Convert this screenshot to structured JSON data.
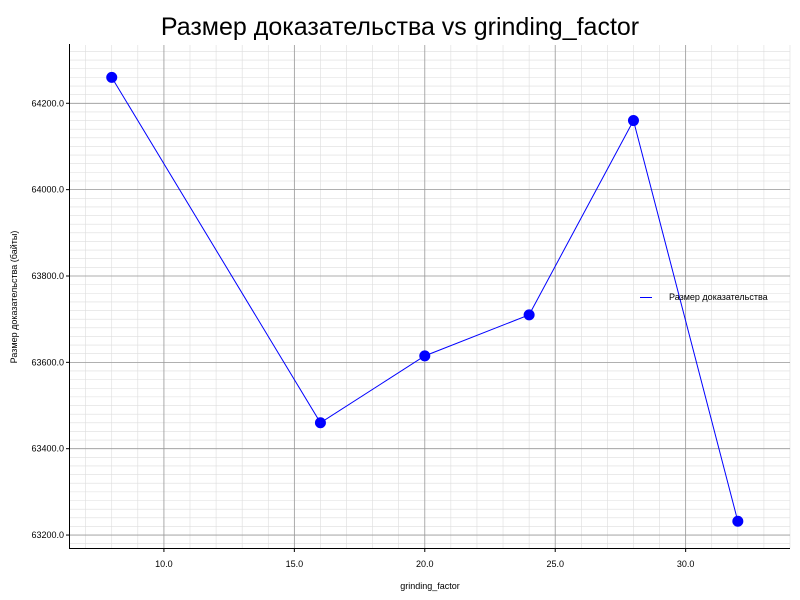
{
  "chart_data": {
    "type": "line",
    "title": "Размер доказательства vs grinding_factor",
    "xlabel": "grinding_factor",
    "ylabel": "Размер доказательства (байты)",
    "xlim": [
      6.4,
      34.0
    ],
    "ylim": [
      63170,
      64335
    ],
    "x_ticks": [
      10.0,
      15.0,
      20.0,
      25.0,
      30.0
    ],
    "x_tick_labels": [
      "10.0",
      "15.0",
      "20.0",
      "25.0",
      "30.0"
    ],
    "y_ticks": [
      63200,
      63400,
      63600,
      63800,
      64000,
      64200
    ],
    "y_tick_labels": [
      "63200.0",
      "63400.0",
      "63600.0",
      "63800.0",
      "64000.0",
      "64200.0"
    ],
    "grid": true,
    "minor_grid": true,
    "legend_position": "right",
    "series": [
      {
        "name": "Размер доказательства",
        "color": "#0000ff",
        "x": [
          8,
          16,
          20,
          24,
          28,
          32
        ],
        "y": [
          64260,
          63460,
          63615,
          63710,
          64160,
          63232
        ]
      }
    ]
  }
}
